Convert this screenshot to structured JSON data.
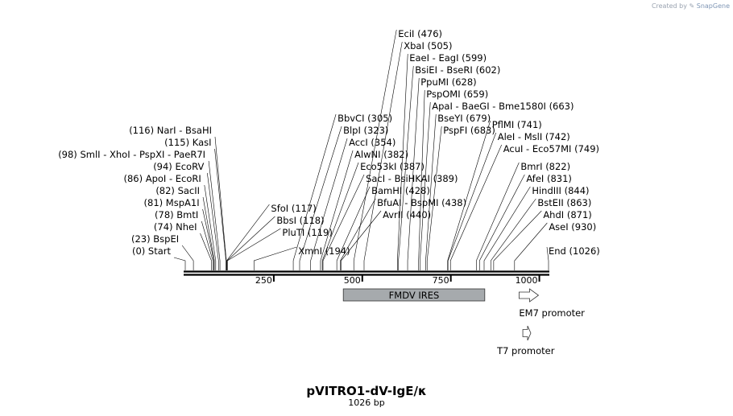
{
  "credit": {
    "prefix": "Created by",
    "brand": "SnapGene"
  },
  "plasmid": {
    "name": "pVITRO1-dV-IgE/κ",
    "length_label": "1026 bp",
    "length_bp": 1026
  },
  "ruler_ticks": [
    {
      "bp": 250,
      "label": "250"
    },
    {
      "bp": 500,
      "label": "500"
    },
    {
      "bp": 750,
      "label": "750"
    },
    {
      "bp": 1000,
      "label": "1000"
    }
  ],
  "sites": [
    {
      "bp": 0,
      "text": "Start",
      "pos": "(0)",
      "side": "left",
      "italic": true
    },
    {
      "bp": 23,
      "text": "BspEI",
      "pos": "(23)",
      "side": "left"
    },
    {
      "bp": 74,
      "text": "NheI",
      "pos": "(74)",
      "side": "left"
    },
    {
      "bp": 78,
      "text": "BmtI",
      "pos": "(78)",
      "side": "left"
    },
    {
      "bp": 81,
      "text": "MspA1I",
      "pos": "(81)",
      "side": "left"
    },
    {
      "bp": 82,
      "text": "SacII",
      "pos": "(82)",
      "side": "left"
    },
    {
      "bp": 86,
      "text": "ApoI  - EcoRI",
      "pos": "(86)",
      "side": "left"
    },
    {
      "bp": 94,
      "text": "EcoRV",
      "pos": "(94)",
      "side": "left"
    },
    {
      "bp": 98,
      "text": "SmlI  - XhoI  - PspXI  - PaeR7I",
      "pos": "(98)",
      "side": "left"
    },
    {
      "bp": 115,
      "text": "KasI",
      "pos": "(115)",
      "side": "left"
    },
    {
      "bp": 116,
      "text": "NarI  - BsaHI",
      "pos": "(116)",
      "side": "left"
    },
    {
      "bp": 117,
      "text": "SfoI",
      "pos": "(117)",
      "side": "right"
    },
    {
      "bp": 118,
      "text": "BbsI",
      "pos": "(118)",
      "side": "right"
    },
    {
      "bp": 119,
      "text": "PluTI",
      "pos": "(119)",
      "side": "right"
    },
    {
      "bp": 194,
      "text": "XmnI",
      "pos": "(194)",
      "side": "right"
    },
    {
      "bp": 305,
      "text": "BbvCI",
      "pos": "(305)",
      "side": "right"
    },
    {
      "bp": 323,
      "text": "BlpI",
      "pos": "(323)",
      "side": "right"
    },
    {
      "bp": 354,
      "text": "AccI",
      "pos": "(354)",
      "side": "right"
    },
    {
      "bp": 382,
      "text": "AlwNI",
      "pos": "(382)",
      "side": "right"
    },
    {
      "bp": 387,
      "text": "Eco53kI",
      "pos": "(387)",
      "side": "right"
    },
    {
      "bp": 389,
      "text": "SacI  - BsiHKAI",
      "pos": "(389)",
      "side": "right"
    },
    {
      "bp": 428,
      "text": "BamHI",
      "pos": "(428)",
      "side": "right"
    },
    {
      "bp": 438,
      "text": "BfuAI  - BspMI",
      "pos": "(438)",
      "side": "right"
    },
    {
      "bp": 440,
      "text": "AvrII",
      "pos": "(440)",
      "side": "right"
    },
    {
      "bp": 476,
      "text": "EciI",
      "pos": "(476)",
      "side": "right"
    },
    {
      "bp": 505,
      "text": "XbaI",
      "pos": "(505)",
      "side": "right"
    },
    {
      "bp": 599,
      "text": "EaeI  - EagI",
      "pos": "(599)",
      "side": "right"
    },
    {
      "bp": 602,
      "text": "BsiEI  - BseRI",
      "pos": "(602)",
      "side": "right"
    },
    {
      "bp": 628,
      "text": "PpuMI",
      "pos": "(628)",
      "side": "right"
    },
    {
      "bp": 659,
      "text": "PspOMI",
      "pos": "(659)",
      "side": "right"
    },
    {
      "bp": 663,
      "text": "ApaI  - BaeGI  - Bme1580I",
      "pos": "(663)",
      "side": "right"
    },
    {
      "bp": 679,
      "text": "BseYI",
      "pos": "(679)",
      "side": "right"
    },
    {
      "bp": 683,
      "text": "PspFI",
      "pos": "(683)",
      "side": "right"
    },
    {
      "bp": 741,
      "text": "PflMI",
      "pos": "(741)",
      "side": "right"
    },
    {
      "bp": 742,
      "text": "AleI  - MslI",
      "pos": "(742)",
      "side": "right"
    },
    {
      "bp": 749,
      "text": "AcuI  - Eco57MI",
      "pos": "(749)",
      "side": "right"
    },
    {
      "bp": 822,
      "text": "BmrI",
      "pos": "(822)",
      "side": "right"
    },
    {
      "bp": 831,
      "text": "AfeI",
      "pos": "(831)",
      "side": "right"
    },
    {
      "bp": 844,
      "text": "HindIII",
      "pos": "(844)",
      "side": "right"
    },
    {
      "bp": 863,
      "text": "BstEII",
      "pos": "(863)",
      "side": "right"
    },
    {
      "bp": 871,
      "text": "AhdI",
      "pos": "(871)",
      "side": "right"
    },
    {
      "bp": 930,
      "text": "AseI",
      "pos": "(930)",
      "side": "right"
    },
    {
      "bp": 1026,
      "text": "End",
      "pos": "(1026)",
      "side": "right",
      "italic": true
    }
  ],
  "features": [
    {
      "label": "FMDV IRES",
      "start_bp": 460,
      "end_bp": 880,
      "type": "box",
      "color": "#a6aaad"
    },
    {
      "label": "EM7 promoter",
      "start_bp": 945,
      "end_bp": 993,
      "type": "arrow"
    },
    {
      "label": "T7 promoter",
      "start_bp": 967,
      "end_bp": 985,
      "type": "arrow"
    }
  ]
}
